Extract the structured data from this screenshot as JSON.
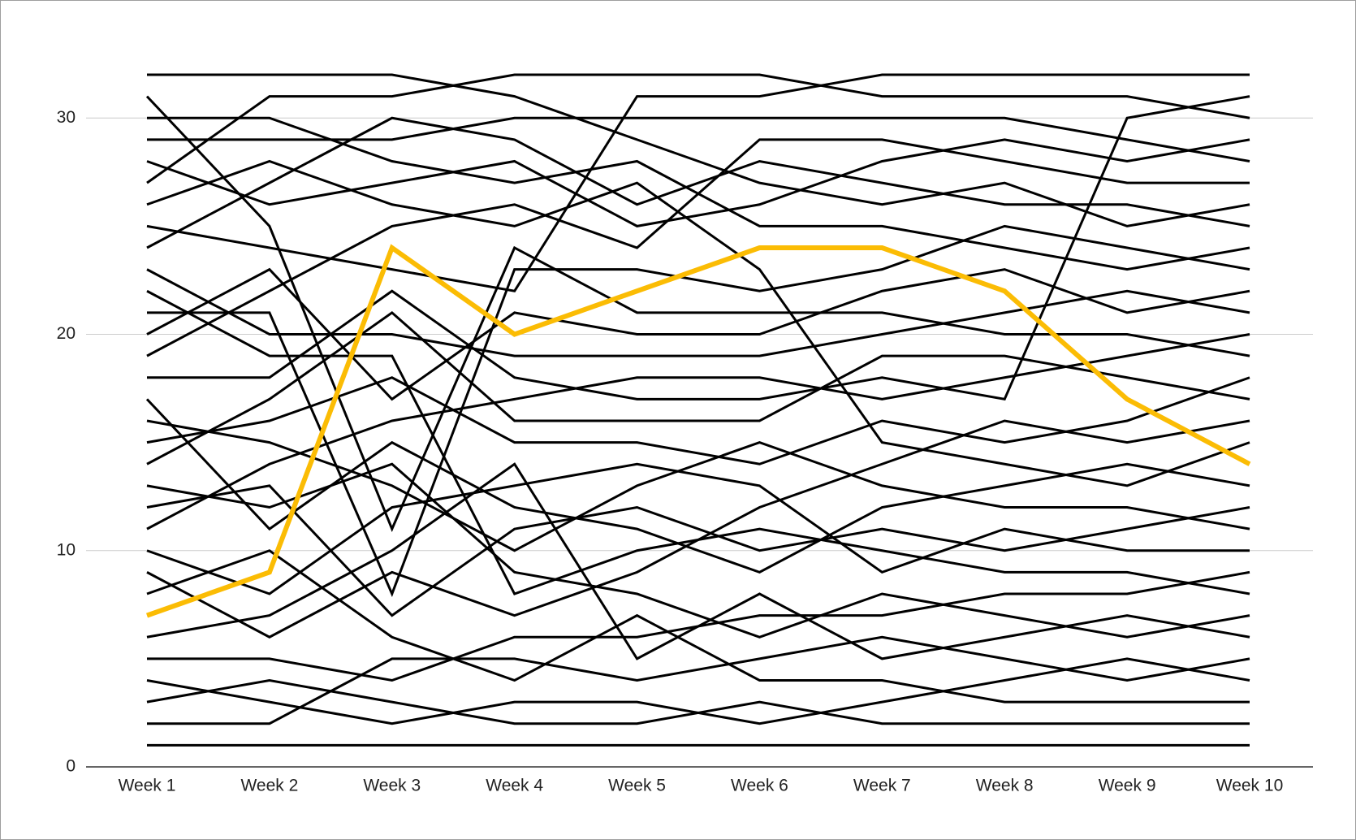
{
  "chart_data": {
    "type": "line",
    "categories": [
      "Week 1",
      "Week 2",
      "Week 3",
      "Week 4",
      "Week 5",
      "Week 6",
      "Week 7",
      "Week 8",
      "Week 9",
      "Week 10"
    ],
    "ylim": [
      0,
      32
    ],
    "yticks": [
      0,
      10,
      20,
      30
    ],
    "grid": true,
    "series": [
      {
        "color": "#000000",
        "values": [
          1,
          1,
          1,
          1,
          1,
          1,
          1,
          1,
          1,
          1
        ]
      },
      {
        "color": "#000000",
        "values": [
          2,
          2,
          5,
          5,
          4,
          5,
          6,
          5,
          4,
          5
        ]
      },
      {
        "color": "#000000",
        "values": [
          3,
          4,
          3,
          2,
          2,
          3,
          2,
          2,
          2,
          2
        ]
      },
      {
        "color": "#000000",
        "values": [
          4,
          3,
          2,
          3,
          3,
          2,
          3,
          4,
          5,
          4
        ]
      },
      {
        "color": "#000000",
        "values": [
          5,
          5,
          4,
          6,
          6,
          7,
          7,
          8,
          8,
          9
        ]
      },
      {
        "color": "#000000",
        "values": [
          6,
          7,
          10,
          14,
          5,
          8,
          5,
          6,
          7,
          6
        ]
      },
      {
        "color": "#000000",
        "values": [
          8,
          10,
          6,
          4,
          7,
          4,
          4,
          3,
          3,
          3
        ]
      },
      {
        "color": "#000000",
        "values": [
          9,
          6,
          9,
          7,
          9,
          12,
          14,
          16,
          15,
          16
        ]
      },
      {
        "color": "#000000",
        "values": [
          10,
          8,
          12,
          13,
          14,
          13,
          9,
          11,
          10,
          10
        ]
      },
      {
        "color": "#000000",
        "values": [
          11,
          14,
          16,
          17,
          18,
          18,
          17,
          18,
          19,
          20
        ]
      },
      {
        "color": "#000000",
        "values": [
          12,
          13,
          7,
          11,
          12,
          10,
          11,
          10,
          11,
          12
        ]
      },
      {
        "color": "#000000",
        "values": [
          13,
          12,
          14,
          9,
          8,
          6,
          8,
          7,
          6,
          7
        ]
      },
      {
        "color": "#000000",
        "values": [
          14,
          17,
          21,
          16,
          16,
          16,
          19,
          19,
          18,
          17
        ]
      },
      {
        "color": "#000000",
        "values": [
          15,
          16,
          18,
          15,
          15,
          14,
          16,
          15,
          16,
          18
        ]
      },
      {
        "color": "#000000",
        "values": [
          16,
          15,
          13,
          10,
          13,
          15,
          13,
          12,
          12,
          11
        ]
      },
      {
        "color": "#000000",
        "values": [
          17,
          11,
          15,
          12,
          11,
          9,
          12,
          13,
          14,
          13
        ]
      },
      {
        "color": "#000000",
        "values": [
          18,
          18,
          22,
          18,
          17,
          17,
          18,
          17,
          30,
          31
        ]
      },
      {
        "color": "#000000",
        "values": [
          19,
          22,
          25,
          26,
          24,
          29,
          29,
          28,
          27,
          27
        ]
      },
      {
        "color": "#000000",
        "values": [
          20,
          23,
          17,
          21,
          20,
          20,
          22,
          23,
          21,
          22
        ]
      },
      {
        "color": "#000000",
        "values": [
          21,
          21,
          8,
          23,
          23,
          22,
          23,
          25,
          24,
          23
        ]
      },
      {
        "color": "#000000",
        "values": [
          22,
          19,
          19,
          8,
          10,
          11,
          10,
          9,
          9,
          8
        ]
      },
      {
        "color": "#000000",
        "values": [
          23,
          20,
          20,
          19,
          19,
          19,
          20,
          21,
          22,
          21
        ]
      },
      {
        "color": "#000000",
        "values": [
          24,
          27,
          30,
          29,
          26,
          28,
          27,
          26,
          26,
          25
        ]
      },
      {
        "color": "#000000",
        "values": [
          25,
          24,
          23,
          22,
          31,
          31,
          32,
          32,
          32,
          32
        ]
      },
      {
        "color": "#000000",
        "values": [
          26,
          28,
          26,
          25,
          27,
          23,
          15,
          14,
          13,
          15
        ]
      },
      {
        "color": "#000000",
        "values": [
          27,
          31,
          31,
          32,
          32,
          32,
          31,
          31,
          31,
          30
        ]
      },
      {
        "color": "#000000",
        "values": [
          28,
          26,
          27,
          28,
          25,
          26,
          28,
          29,
          28,
          29
        ]
      },
      {
        "color": "#000000",
        "values": [
          29,
          29,
          29,
          30,
          30,
          30,
          30,
          30,
          29,
          28
        ]
      },
      {
        "color": "#000000",
        "values": [
          30,
          30,
          28,
          27,
          28,
          25,
          25,
          24,
          23,
          24
        ]
      },
      {
        "color": "#000000",
        "values": [
          31,
          25,
          11,
          24,
          21,
          21,
          21,
          20,
          20,
          19
        ]
      },
      {
        "color": "#000000",
        "values": [
          32,
          32,
          32,
          31,
          29,
          27,
          26,
          27,
          25,
          26
        ]
      },
      {
        "color": "#fbbc04",
        "values": [
          7,
          9,
          24,
          20,
          22,
          24,
          24,
          22,
          17,
          14
        ]
      }
    ]
  }
}
